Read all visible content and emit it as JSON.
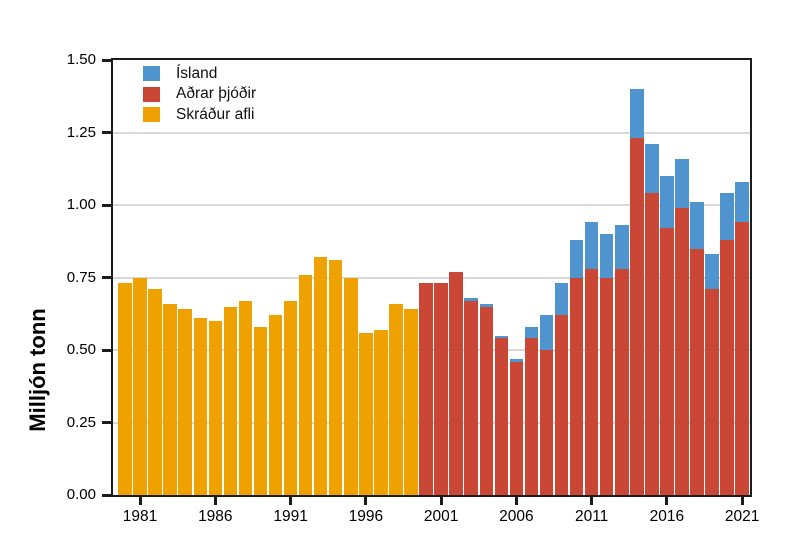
{
  "legend": {
    "items": [
      {
        "label": "Ísland",
        "color": "#4F94CE"
      },
      {
        "label": "Aðrar þjóðir",
        "color": "#CA4635"
      },
      {
        "label": "Skráður afli",
        "color": "#EFA100"
      }
    ]
  },
  "chart_data": {
    "type": "bar",
    "stacked": true,
    "title": "",
    "xlabel": "",
    "ylabel": "Milljón tonn",
    "ylim": [
      0,
      1.5
    ],
    "grid": "horizontal",
    "legend_position": "top-left",
    "x": [
      1980,
      1981,
      1982,
      1983,
      1984,
      1985,
      1986,
      1987,
      1988,
      1989,
      1990,
      1991,
      1992,
      1993,
      1994,
      1995,
      1996,
      1997,
      1998,
      1999,
      2000,
      2001,
      2002,
      2003,
      2004,
      2005,
      2006,
      2007,
      2008,
      2009,
      2010,
      2011,
      2012,
      2013,
      2014,
      2015,
      2016,
      2017,
      2018,
      2019,
      2020,
      2021
    ],
    "xtick_years": [
      1981,
      1986,
      1991,
      1996,
      2001,
      2006,
      2011,
      2016,
      2021
    ],
    "xtick_labels": [
      "1981",
      "1986",
      "1991",
      "1996",
      "2001",
      "2006",
      "2011",
      "2016",
      "2021"
    ],
    "ytick_values": [
      0,
      0.25,
      0.5,
      0.75,
      1.0,
      1.25,
      1.5
    ],
    "ytick_labels": [
      "0.00",
      "0.25",
      "0.50",
      "0.75",
      "1.00",
      "1.25",
      "1.50"
    ],
    "series": [
      {
        "name": "Skráður afli",
        "color": "#EFA100",
        "values": [
          0.73,
          0.75,
          0.71,
          0.66,
          0.64,
          0.61,
          0.6,
          0.65,
          0.67,
          0.58,
          0.62,
          0.67,
          0.76,
          0.82,
          0.81,
          0.75,
          0.56,
          0.57,
          0.66,
          0.64,
          0,
          0,
          0,
          0,
          0,
          0,
          0,
          0,
          0,
          0,
          0,
          0,
          0,
          0,
          0,
          0,
          0,
          0,
          0,
          0,
          0,
          0
        ]
      },
      {
        "name": "Aðrar þjóðir",
        "color": "#CA4635",
        "values": [
          0,
          0,
          0,
          0,
          0,
          0,
          0,
          0,
          0,
          0,
          0,
          0,
          0,
          0,
          0,
          0,
          0,
          0,
          0,
          0,
          0.73,
          0.73,
          0.77,
          0.67,
          0.65,
          0.54,
          0.46,
          0.54,
          0.5,
          0.62,
          0.75,
          0.78,
          0.75,
          0.78,
          1.23,
          1.04,
          0.92,
          0.99,
          0.85,
          0.71,
          0.88,
          0.94
        ]
      },
      {
        "name": "Ísland",
        "color": "#4F94CE",
        "values": [
          0,
          0,
          0,
          0,
          0,
          0,
          0,
          0,
          0,
          0,
          0,
          0,
          0,
          0,
          0,
          0,
          0,
          0,
          0,
          0,
          0,
          0,
          0,
          0.01,
          0.01,
          0.01,
          0.01,
          0.04,
          0.12,
          0.11,
          0.13,
          0.16,
          0.15,
          0.15,
          0.17,
          0.17,
          0.18,
          0.17,
          0.16,
          0.12,
          0.16,
          0.14
        ]
      }
    ]
  }
}
